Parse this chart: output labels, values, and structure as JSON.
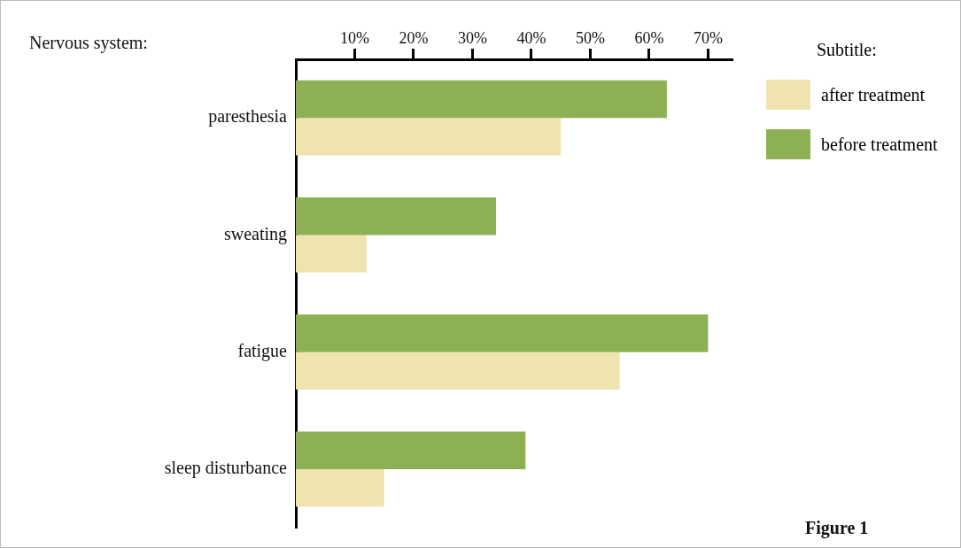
{
  "chart_data": {
    "type": "bar",
    "orientation": "horizontal",
    "ylabel": "Nervous system:",
    "legend_title": "Subtitle:",
    "legend": "right",
    "categories": [
      "paresthesia",
      "sweating",
      "fatigue",
      "sleep disturbance"
    ],
    "series": [
      {
        "name": "before treatment",
        "color": "#8db054",
        "values": [
          63,
          34,
          70,
          39
        ]
      },
      {
        "name": "after treatment",
        "color": "#efe3b0",
        "values": [
          45,
          12,
          55,
          15
        ]
      }
    ],
    "xlim": [
      0,
      74
    ],
    "xticks": [
      {
        "value": 10,
        "label": "10%"
      },
      {
        "value": 20,
        "label": "20%"
      },
      {
        "value": 30,
        "label": "30%"
      },
      {
        "value": 40,
        "label": "40%"
      },
      {
        "value": 50,
        "label": "50%"
      },
      {
        "value": 60,
        "label": "60%"
      },
      {
        "value": 70,
        "label": "70%"
      }
    ],
    "grid": false,
    "annotations": [
      "Figure 1"
    ]
  }
}
